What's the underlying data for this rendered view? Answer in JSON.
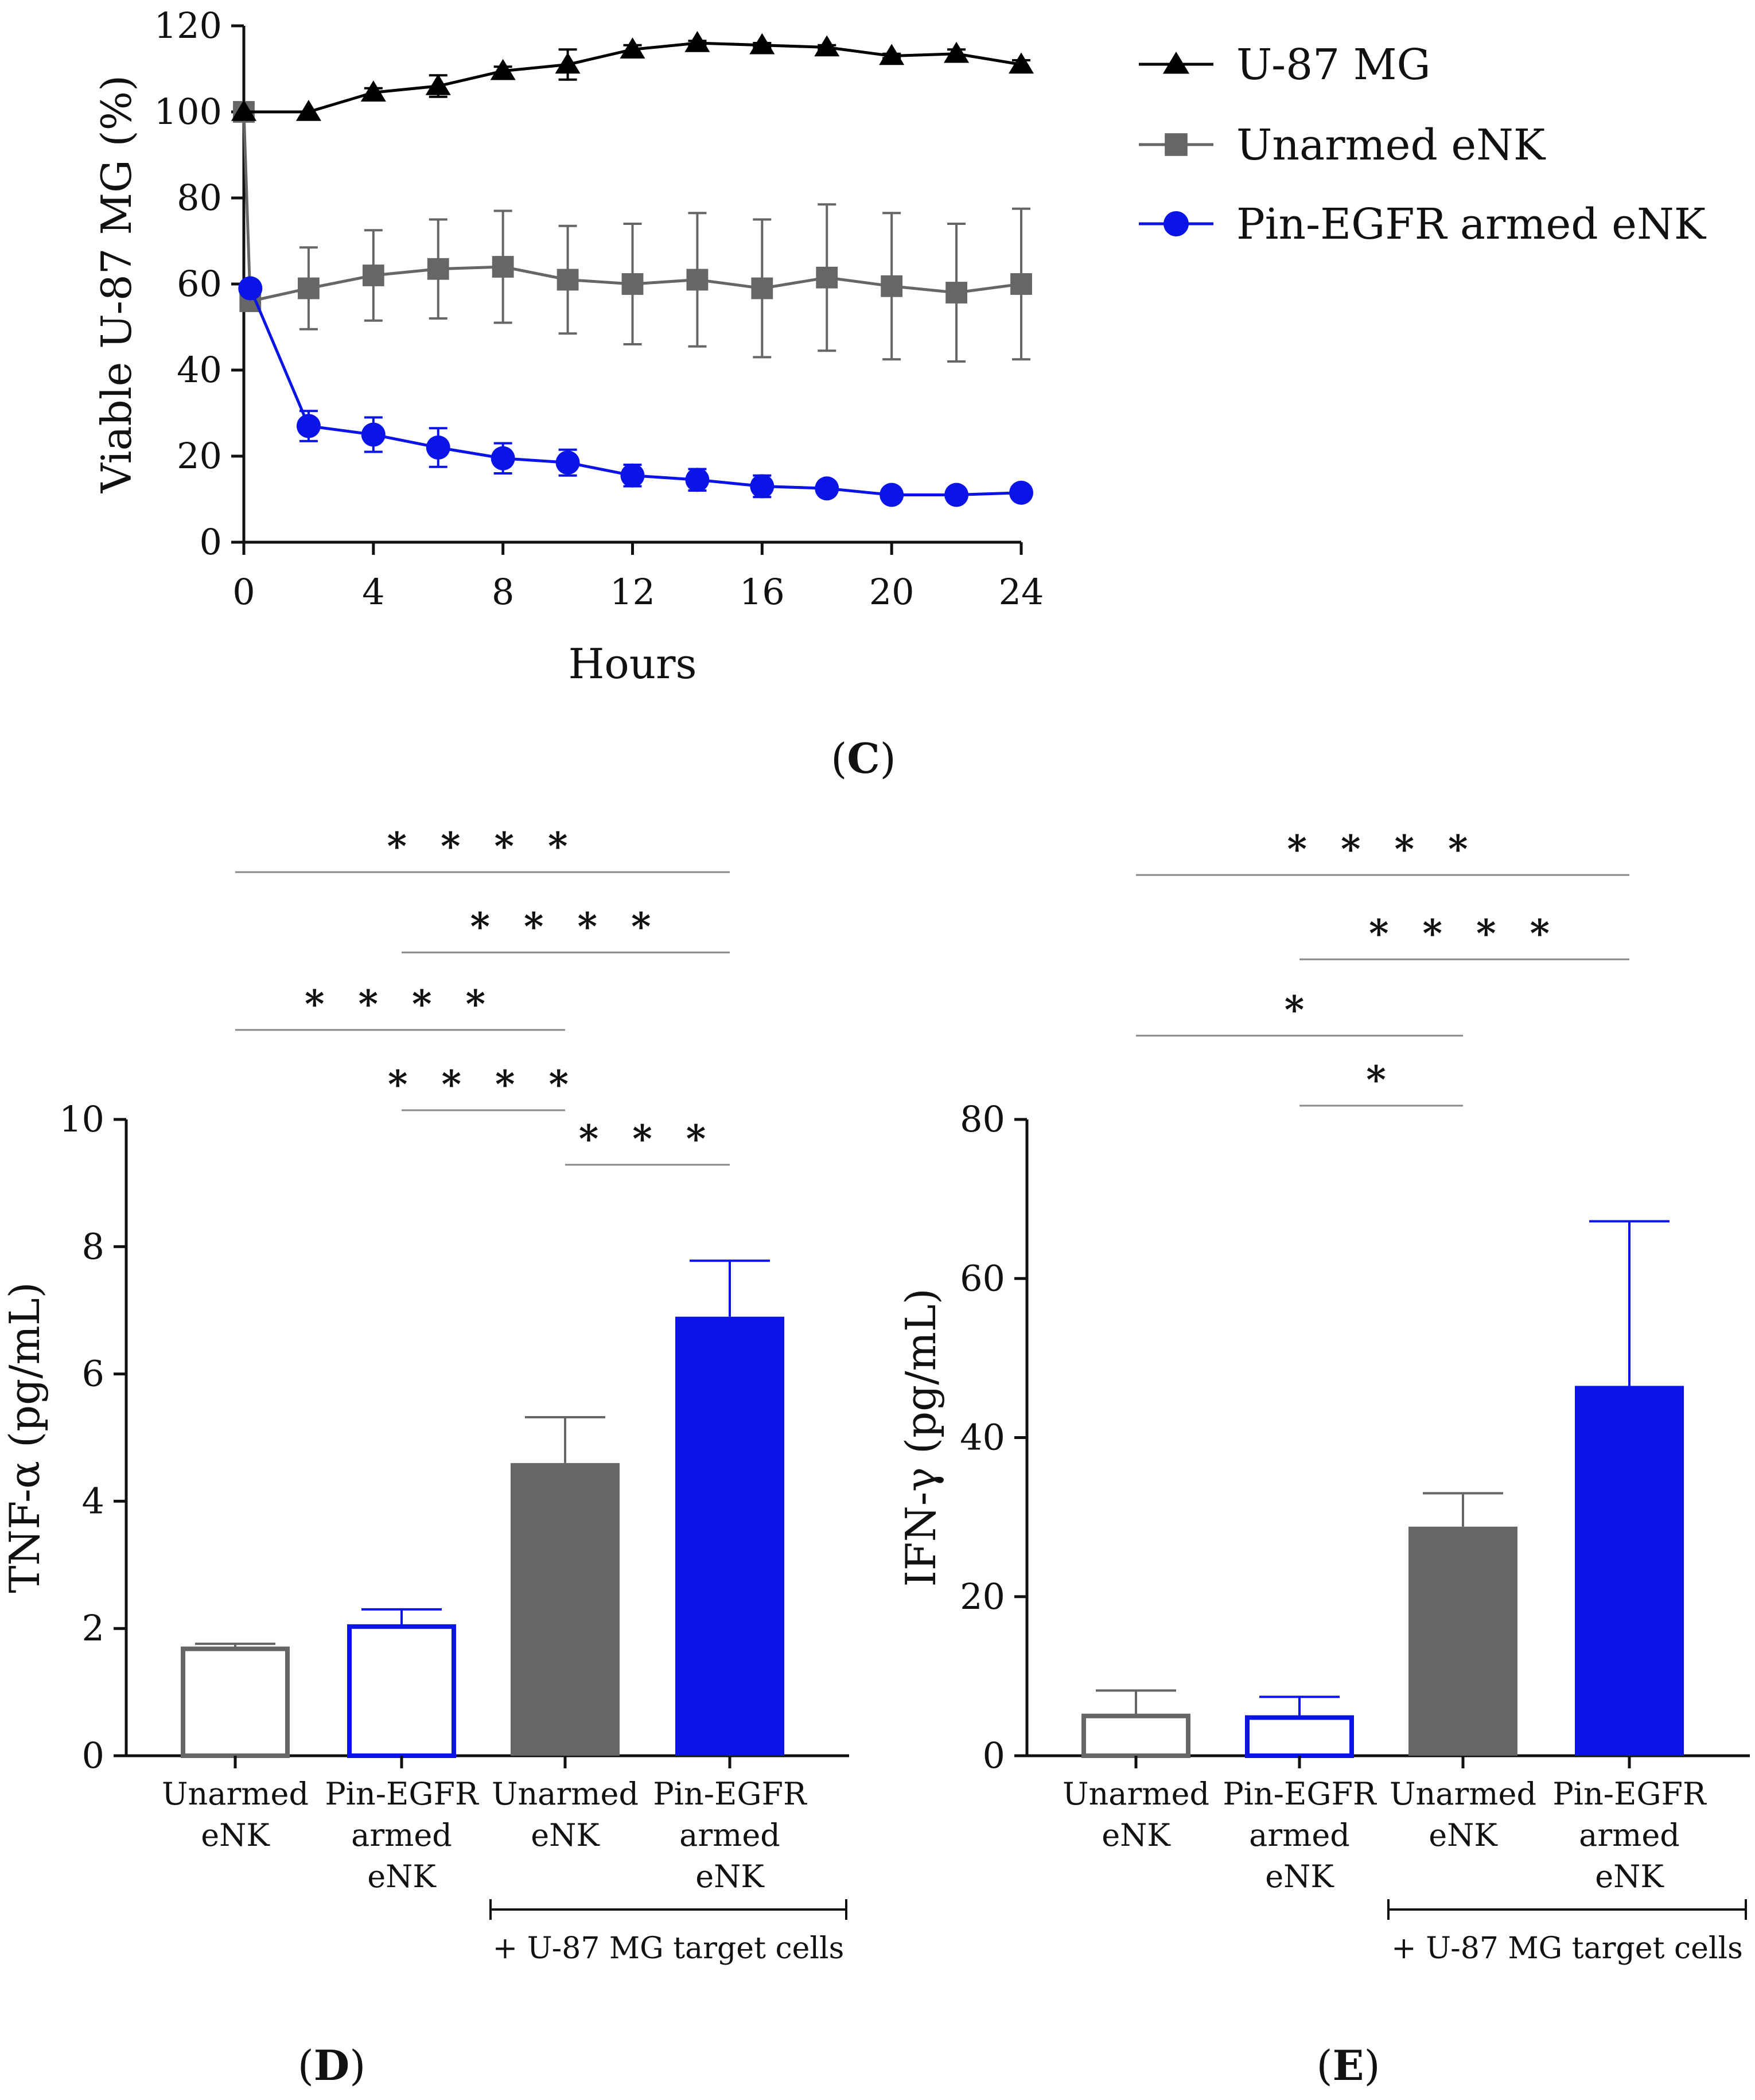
{
  "colors": {
    "black": "#000000",
    "gray": "#666666",
    "blue": "#0a14e6",
    "sig_line": "#888888"
  },
  "chart_data": [
    {
      "panel": "C",
      "type": "line",
      "xlabel": "Hours",
      "ylabel": "Viable U-87 MG (%)",
      "xlim": [
        0,
        24
      ],
      "ylim": [
        0,
        120
      ],
      "xticks": [
        0,
        4,
        8,
        12,
        16,
        20,
        24
      ],
      "yticks": [
        0,
        20,
        40,
        60,
        80,
        100,
        120
      ],
      "legend_position": "right",
      "series": [
        {
          "name": "U-87 MG",
          "color": "#000000",
          "marker": "triangle",
          "x": [
            0,
            2,
            4,
            6,
            8,
            10,
            12,
            14,
            16,
            18,
            20,
            22,
            24
          ],
          "y": [
            100,
            100,
            104.5,
            106,
            109.5,
            111,
            114.5,
            116,
            115.5,
            115,
            113,
            113.5,
            111
          ],
          "err": [
            0,
            0,
            1,
            2.5,
            1,
            3.5,
            1,
            0.5,
            0.5,
            0.5,
            0.5,
            1,
            1
          ]
        },
        {
          "name": "Unarmed eNK",
          "color": "#666666",
          "marker": "square",
          "x": [
            0,
            0.2,
            2,
            4,
            6,
            8,
            10,
            12,
            14,
            16,
            18,
            20,
            22,
            24
          ],
          "y": [
            100,
            56,
            59,
            62,
            63.5,
            64,
            61,
            60,
            61,
            59,
            61.5,
            59.5,
            58,
            60
          ],
          "err": [
            0,
            2,
            9.5,
            10.5,
            11.5,
            13,
            12.5,
            14,
            15.5,
            16,
            17,
            17,
            16,
            17.5
          ]
        },
        {
          "name": "Pin-EGFR armed eNK",
          "color": "#0a14e6",
          "marker": "circle",
          "x": [
            0.2,
            2,
            4,
            6,
            8,
            10,
            12,
            14,
            16,
            18,
            20,
            22,
            24
          ],
          "y": [
            59,
            27,
            25,
            22,
            19.5,
            18.5,
            15.5,
            14.5,
            13,
            12.5,
            11,
            11,
            11.5
          ],
          "err": [
            0,
            3.5,
            4,
            4.5,
            3.5,
            3,
            2.5,
            2.5,
            2.5,
            1.5,
            1,
            0.5,
            0.5
          ]
        }
      ]
    },
    {
      "panel": "D",
      "type": "bar",
      "ylabel": "TNF-α (pg/mL)",
      "ylim": [
        0,
        10
      ],
      "yticks": [
        0,
        2,
        4,
        6,
        8,
        10
      ],
      "categories": [
        [
          "Unarmed",
          "eNK"
        ],
        [
          "Pin-EGFR",
          "armed",
          "eNK"
        ],
        [
          "Unarmed",
          "eNK"
        ],
        [
          "Pin-EGFR",
          "armed",
          "eNK"
        ]
      ],
      "values": [
        1.68,
        2.03,
        4.6,
        6.9
      ],
      "errors": [
        0.08,
        0.27,
        0.72,
        0.88
      ],
      "styles": [
        "gray-outline",
        "blue-outline",
        "gray-filled",
        "blue-filled"
      ],
      "group_note": "+ U-87 MG target cells",
      "significance": [
        {
          "from": 0,
          "to": 3,
          "label": "****"
        },
        {
          "from": 1,
          "to": 3,
          "label": "****"
        },
        {
          "from": 0,
          "to": 2,
          "label": "****"
        },
        {
          "from": 1,
          "to": 2,
          "label": "****"
        },
        {
          "from": 2,
          "to": 3,
          "label": "***"
        }
      ]
    },
    {
      "panel": "E",
      "type": "bar",
      "ylabel": "IFN-γ (pg/mL)",
      "ylim": [
        0,
        80
      ],
      "yticks": [
        0,
        20,
        40,
        60,
        80
      ],
      "categories": [
        [
          "Unarmed",
          "eNK"
        ],
        [
          "Pin-EGFR",
          "armed",
          "eNK"
        ],
        [
          "Unarmed",
          "eNK"
        ],
        [
          "Pin-EGFR",
          "armed",
          "eNK"
        ]
      ],
      "values": [
        5,
        4.8,
        28.8,
        46.5
      ],
      "errors": [
        3.2,
        2.6,
        4.2,
        20.7
      ],
      "styles": [
        "gray-outline",
        "blue-outline",
        "gray-filled",
        "blue-filled"
      ],
      "group_note": "+ U-87 MG target cells",
      "significance": [
        {
          "from": 0,
          "to": 3,
          "label": "****"
        },
        {
          "from": 1,
          "to": 3,
          "label": "****"
        },
        {
          "from": 0,
          "to": 2,
          "label": "*"
        },
        {
          "from": 1,
          "to": 2,
          "label": "*"
        }
      ]
    }
  ],
  "panel_labels": {
    "C": {
      "open": "(",
      "letter": "C",
      "close": ")"
    },
    "D": {
      "open": "(",
      "letter": "D",
      "close": ")"
    },
    "E": {
      "open": "(",
      "letter": "E",
      "close": ")"
    }
  }
}
